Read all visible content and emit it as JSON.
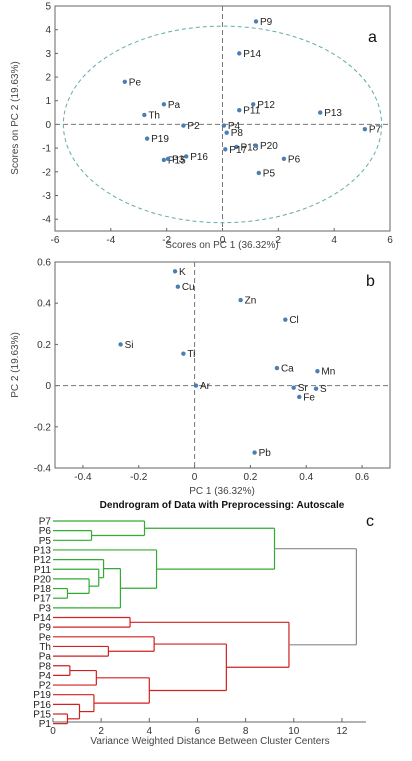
{
  "chart_data": [
    {
      "type": "scatter",
      "panel_label": "a",
      "xlabel": "Scores on PC 1 (36.32%)",
      "ylabel": "Scores on PC 2 (19.63%)",
      "xlim": [
        -6,
        6
      ],
      "ylim": [
        -4.5,
        5
      ],
      "xticks": [
        -6,
        -4,
        -2,
        0,
        2,
        4,
        6
      ],
      "yticks": [
        -4,
        -3,
        -2,
        -1,
        0,
        1,
        2,
        3,
        4,
        5
      ],
      "grid": false,
      "ellipse": {
        "center": [
          0,
          0
        ],
        "rx": 5.7,
        "ry": 4.15
      },
      "points": [
        {
          "label": "P9",
          "x": 1.2,
          "y": 4.35
        },
        {
          "label": "P14",
          "x": 0.6,
          "y": 3.0
        },
        {
          "label": "Pe",
          "x": -3.5,
          "y": 1.8
        },
        {
          "label": "Pa",
          "x": -2.1,
          "y": 0.85
        },
        {
          "label": "Th",
          "x": -2.8,
          "y": 0.4
        },
        {
          "label": "P12",
          "x": 1.1,
          "y": 0.85
        },
        {
          "label": "P11",
          "x": 0.6,
          "y": 0.6
        },
        {
          "label": "P13",
          "x": 3.5,
          "y": 0.5
        },
        {
          "label": "P2",
          "x": -1.4,
          "y": -0.05
        },
        {
          "label": "P4",
          "x": 0.05,
          "y": -0.05
        },
        {
          "label": "P8",
          "x": 0.15,
          "y": -0.35
        },
        {
          "label": "P7",
          "x": 5.1,
          "y": -0.2
        },
        {
          "label": "P19",
          "x": -2.7,
          "y": -0.6
        },
        {
          "label": "P18",
          "x": 0.5,
          "y": -0.95
        },
        {
          "label": "P20",
          "x": 1.2,
          "y": -0.9
        },
        {
          "label": "P17",
          "x": 0.1,
          "y": -1.05
        },
        {
          "label": "P16",
          "x": -1.3,
          "y": -1.35
        },
        {
          "label": "P15",
          "x": -2.1,
          "y": -1.5
        },
        {
          "label": "P3",
          "x": -1.95,
          "y": -1.45
        },
        {
          "label": "P6",
          "x": 2.2,
          "y": -1.45
        },
        {
          "label": "P5",
          "x": 1.3,
          "y": -2.05
        }
      ]
    },
    {
      "type": "scatter",
      "panel_label": "b",
      "xlabel": "PC 1 (36.32%)",
      "ylabel": "PC 2 (19.63%)",
      "xlim": [
        -0.5,
        0.7
      ],
      "ylim": [
        -0.4,
        0.6
      ],
      "xticks": [
        -0.4,
        -0.2,
        0,
        0.2,
        0.4,
        0.6
      ],
      "yticks": [
        -0.4,
        -0.2,
        0,
        0.2,
        0.4,
        0.6
      ],
      "grid": false,
      "points": [
        {
          "label": "K",
          "x": -0.07,
          "y": 0.555
        },
        {
          "label": "Cu",
          "x": -0.06,
          "y": 0.48
        },
        {
          "label": "Zn",
          "x": 0.165,
          "y": 0.415
        },
        {
          "label": "Cl",
          "x": 0.325,
          "y": 0.32
        },
        {
          "label": "Si",
          "x": -0.265,
          "y": 0.2
        },
        {
          "label": "Ti",
          "x": -0.04,
          "y": 0.155
        },
        {
          "label": "Ca",
          "x": 0.295,
          "y": 0.085
        },
        {
          "label": "Mn",
          "x": 0.44,
          "y": 0.07
        },
        {
          "label": "Ar",
          "x": 0.005,
          "y": 0.0
        },
        {
          "label": "Sr",
          "x": 0.355,
          "y": -0.01
        },
        {
          "label": "S",
          "x": 0.435,
          "y": -0.015
        },
        {
          "label": "Fe",
          "x": 0.375,
          "y": -0.055
        },
        {
          "label": "Pb",
          "x": 0.215,
          "y": -0.325
        }
      ]
    },
    {
      "type": "dendrogram",
      "panel_label": "c",
      "title": "Dendrogram of Data with Preprocessing: Autoscale",
      "xlabel": "Variance Weighted Distance Between Cluster Centers",
      "xlim": [
        0,
        13
      ],
      "xticks": [
        0,
        2,
        4,
        6,
        8,
        10,
        12
      ],
      "leaves": [
        "P7",
        "P6",
        "P5",
        "P13",
        "P12",
        "P11",
        "P20",
        "P18",
        "P17",
        "P3",
        "P14",
        "P9",
        "Pe",
        "Th",
        "Pa",
        "P8",
        "P4",
        "P2",
        "P19",
        "P16",
        "P15",
        "P1"
      ],
      "colors": {
        "green": "#33aa33",
        "red": "#d02020",
        "gray": "#888888"
      },
      "merges": [
        {
          "a": 1,
          "b": 2,
          "h": 1.6,
          "color": "green"
        },
        {
          "a": 0,
          "b": 22,
          "h": 3.8,
          "color": "green"
        },
        {
          "a": 7,
          "b": 8,
          "h": 0.6,
          "color": "green"
        },
        {
          "a": 6,
          "b": 24,
          "h": 1.5,
          "color": "green"
        },
        {
          "a": 5,
          "b": 25,
          "h": 1.9,
          "color": "green"
        },
        {
          "a": 4,
          "b": 26,
          "h": 2.1,
          "color": "green"
        },
        {
          "a": 27,
          "b": 9,
          "h": 2.8,
          "color": "green"
        },
        {
          "a": 3,
          "b": 28,
          "h": 4.3,
          "color": "green"
        },
        {
          "a": 29,
          "b": null,
          "h": 5.2,
          "color": "green"
        },
        {
          "a": 23,
          "b": 30,
          "h": 9.2,
          "color": "green"
        },
        {
          "a": 10,
          "b": 11,
          "h": 3.2,
          "color": "red"
        },
        {
          "a": 13,
          "b": 14,
          "h": 2.3,
          "color": "red"
        },
        {
          "a": 12,
          "b": 33,
          "h": 4.2,
          "color": "red"
        },
        {
          "a": 15,
          "b": 16,
          "h": 0.7,
          "color": "red"
        },
        {
          "a": 35,
          "b": 17,
          "h": 1.8,
          "color": "red"
        },
        {
          "a": 20,
          "b": 21,
          "h": 0.6,
          "color": "red"
        },
        {
          "a": 19,
          "b": 37,
          "h": 1.1,
          "color": "red"
        },
        {
          "a": 18,
          "b": 38,
          "h": 1.7,
          "color": "red"
        },
        {
          "a": 36,
          "b": 39,
          "h": 4.0,
          "color": "red"
        },
        {
          "a": 34,
          "b": 40,
          "h": 7.2,
          "color": "red"
        },
        {
          "a": 32,
          "b": 41,
          "h": 9.8,
          "color": "red"
        },
        {
          "a": 31,
          "b": 42,
          "h": 12.6,
          "color": "gray"
        }
      ]
    }
  ]
}
